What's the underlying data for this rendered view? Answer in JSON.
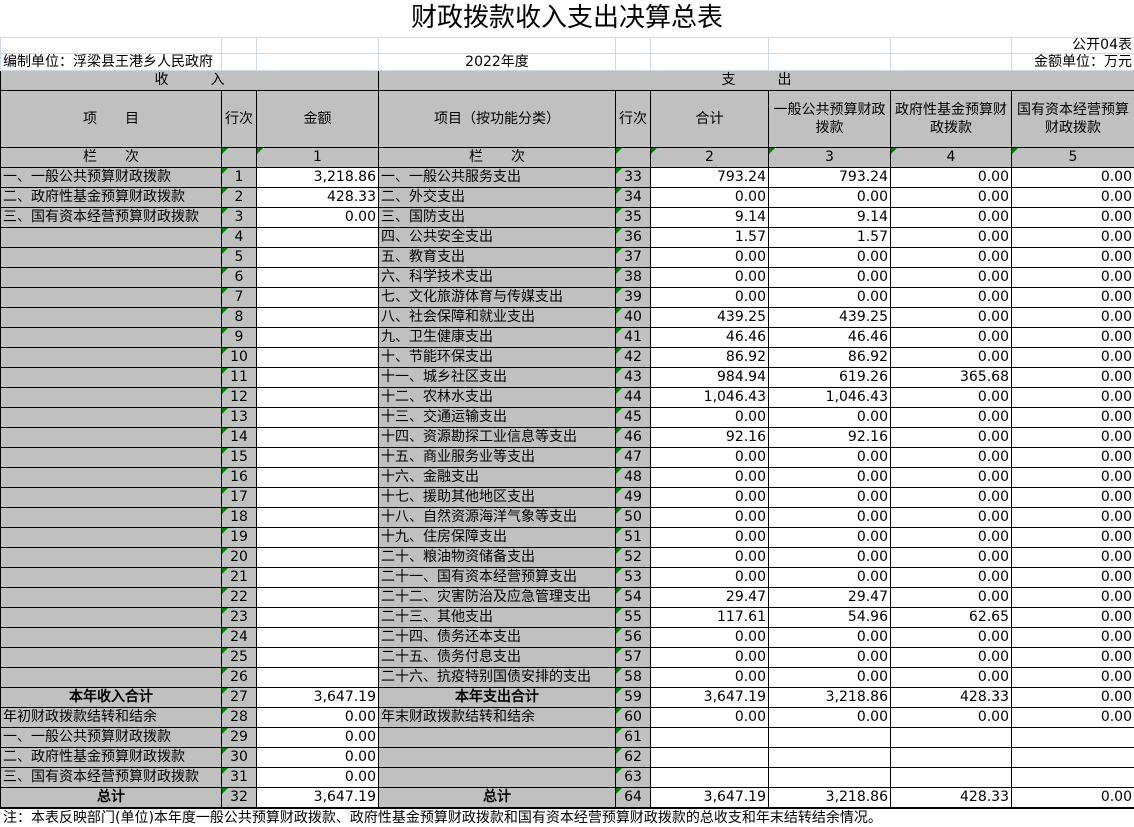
{
  "title": "财政拨款收入支出决算总表",
  "form_code": "公开04表",
  "unit_label": "编制单位：浮梁县王港乡人民政府",
  "year": "2022年度",
  "currency_unit": "金额单位：万元",
  "income_header": "收　　　入",
  "expense_header": "支　　　出",
  "columns": {
    "item": "项　　目",
    "line": "行次",
    "amount": "金额",
    "func_item": "项目（按功能分类）",
    "line2": "行次",
    "total": "合计",
    "general": "一般公共预算财政拨款",
    "fund": "政府性基金预算财政拨款",
    "state": "国有资本经营预算财政拨款"
  },
  "column_index": {
    "label": "栏　　次",
    "amount": "1",
    "label2": "栏　　次",
    "total": "2",
    "general": "3",
    "fund": "4",
    "state": "5"
  },
  "income_rows": [
    {
      "item": "一、一般公共预算财政拨款",
      "line": "1",
      "amount": "3,218.86"
    },
    {
      "item": "二、政府性基金预算财政拨款",
      "line": "2",
      "amount": "428.33"
    },
    {
      "item": "三、国有资本经营预算财政拨款",
      "line": "3",
      "amount": "0.00"
    },
    {
      "item": "",
      "line": "4",
      "amount": ""
    },
    {
      "item": "",
      "line": "5",
      "amount": ""
    },
    {
      "item": "",
      "line": "6",
      "amount": ""
    },
    {
      "item": "",
      "line": "7",
      "amount": ""
    },
    {
      "item": "",
      "line": "8",
      "amount": ""
    },
    {
      "item": "",
      "line": "9",
      "amount": ""
    },
    {
      "item": "",
      "line": "10",
      "amount": ""
    },
    {
      "item": "",
      "line": "11",
      "amount": ""
    },
    {
      "item": "",
      "line": "12",
      "amount": ""
    },
    {
      "item": "",
      "line": "13",
      "amount": ""
    },
    {
      "item": "",
      "line": "14",
      "amount": ""
    },
    {
      "item": "",
      "line": "15",
      "amount": ""
    },
    {
      "item": "",
      "line": "16",
      "amount": ""
    },
    {
      "item": "",
      "line": "17",
      "amount": ""
    },
    {
      "item": "",
      "line": "18",
      "amount": ""
    },
    {
      "item": "",
      "line": "19",
      "amount": ""
    },
    {
      "item": "",
      "line": "20",
      "amount": ""
    },
    {
      "item": "",
      "line": "21",
      "amount": ""
    },
    {
      "item": "",
      "line": "22",
      "amount": ""
    },
    {
      "item": "",
      "line": "23",
      "amount": ""
    },
    {
      "item": "",
      "line": "24",
      "amount": ""
    },
    {
      "item": "",
      "line": "25",
      "amount": ""
    },
    {
      "item": "",
      "line": "26",
      "amount": ""
    },
    {
      "item": "本年收入合计",
      "line": "27",
      "amount": "3,647.19"
    },
    {
      "item": "年初财政拨款结转和结余",
      "line": "28",
      "amount": "0.00"
    },
    {
      "item": "一、一般公共预算财政拨款",
      "line": "29",
      "amount": "0.00"
    },
    {
      "item": "二、政府性基金预算财政拨款",
      "line": "30",
      "amount": "0.00"
    },
    {
      "item": "三、国有资本经营预算财政拨款",
      "line": "31",
      "amount": "0.00"
    },
    {
      "item": "总计",
      "line": "32",
      "amount": "3,647.19"
    }
  ],
  "expense_rows": [
    {
      "item": "一、一般公共服务支出",
      "line": "33",
      "total": "793.24",
      "general": "793.24",
      "fund": "0.00",
      "state": "0.00"
    },
    {
      "item": "二、外交支出",
      "line": "34",
      "total": "0.00",
      "general": "0.00",
      "fund": "0.00",
      "state": "0.00"
    },
    {
      "item": "三、国防支出",
      "line": "35",
      "total": "9.14",
      "general": "9.14",
      "fund": "0.00",
      "state": "0.00"
    },
    {
      "item": "四、公共安全支出",
      "line": "36",
      "total": "1.57",
      "general": "1.57",
      "fund": "0.00",
      "state": "0.00"
    },
    {
      "item": "五、教育支出",
      "line": "37",
      "total": "0.00",
      "general": "0.00",
      "fund": "0.00",
      "state": "0.00"
    },
    {
      "item": "六、科学技术支出",
      "line": "38",
      "total": "0.00",
      "general": "0.00",
      "fund": "0.00",
      "state": "0.00"
    },
    {
      "item": "七、文化旅游体育与传媒支出",
      "line": "39",
      "total": "0.00",
      "general": "0.00",
      "fund": "0.00",
      "state": "0.00"
    },
    {
      "item": "八、社会保障和就业支出",
      "line": "40",
      "total": "439.25",
      "general": "439.25",
      "fund": "0.00",
      "state": "0.00"
    },
    {
      "item": "九、卫生健康支出",
      "line": "41",
      "total": "46.46",
      "general": "46.46",
      "fund": "0.00",
      "state": "0.00"
    },
    {
      "item": "十、节能环保支出",
      "line": "42",
      "total": "86.92",
      "general": "86.92",
      "fund": "0.00",
      "state": "0.00"
    },
    {
      "item": "十一、城乡社区支出",
      "line": "43",
      "total": "984.94",
      "general": "619.26",
      "fund": "365.68",
      "state": "0.00"
    },
    {
      "item": "十二、农林水支出",
      "line": "44",
      "total": "1,046.43",
      "general": "1,046.43",
      "fund": "0.00",
      "state": "0.00"
    },
    {
      "item": "十三、交通运输支出",
      "line": "45",
      "total": "0.00",
      "general": "0.00",
      "fund": "0.00",
      "state": "0.00"
    },
    {
      "item": "十四、资源勘探工业信息等支出",
      "line": "46",
      "total": "92.16",
      "general": "92.16",
      "fund": "0.00",
      "state": "0.00"
    },
    {
      "item": "十五、商业服务业等支出",
      "line": "47",
      "total": "0.00",
      "general": "0.00",
      "fund": "0.00",
      "state": "0.00"
    },
    {
      "item": "十六、金融支出",
      "line": "48",
      "total": "0.00",
      "general": "0.00",
      "fund": "0.00",
      "state": "0.00"
    },
    {
      "item": "十七、援助其他地区支出",
      "line": "49",
      "total": "0.00",
      "general": "0.00",
      "fund": "0.00",
      "state": "0.00"
    },
    {
      "item": "十八、自然资源海洋气象等支出",
      "line": "50",
      "total": "0.00",
      "general": "0.00",
      "fund": "0.00",
      "state": "0.00"
    },
    {
      "item": "十九、住房保障支出",
      "line": "51",
      "total": "0.00",
      "general": "0.00",
      "fund": "0.00",
      "state": "0.00"
    },
    {
      "item": "二十、粮油物资储备支出",
      "line": "52",
      "total": "0.00",
      "general": "0.00",
      "fund": "0.00",
      "state": "0.00"
    },
    {
      "item": "二十一、国有资本经营预算支出",
      "line": "53",
      "total": "0.00",
      "general": "0.00",
      "fund": "0.00",
      "state": "0.00"
    },
    {
      "item": "二十二、灾害防治及应急管理支出",
      "line": "54",
      "total": "29.47",
      "general": "29.47",
      "fund": "0.00",
      "state": "0.00"
    },
    {
      "item": "二十三、其他支出",
      "line": "55",
      "total": "117.61",
      "general": "54.96",
      "fund": "62.65",
      "state": "0.00"
    },
    {
      "item": "二十四、债务还本支出",
      "line": "56",
      "total": "0.00",
      "general": "0.00",
      "fund": "0.00",
      "state": "0.00"
    },
    {
      "item": "二十五、债务付息支出",
      "line": "57",
      "total": "0.00",
      "general": "0.00",
      "fund": "0.00",
      "state": "0.00"
    },
    {
      "item": "二十六、抗疫特别国债安排的支出",
      "line": "58",
      "total": "0.00",
      "general": "0.00",
      "fund": "0.00",
      "state": "0.00"
    },
    {
      "item": "本年支出合计",
      "line": "59",
      "total": "3,647.19",
      "general": "3,218.86",
      "fund": "428.33",
      "state": "0.00"
    },
    {
      "item": "年末财政拨款结转和结余",
      "line": "60",
      "total": "0.00",
      "general": "0.00",
      "fund": "0.00",
      "state": "0.00"
    },
    {
      "item": "",
      "line": "61",
      "total": "",
      "general": "",
      "fund": "",
      "state": ""
    },
    {
      "item": "",
      "line": "62",
      "total": "",
      "general": "",
      "fund": "",
      "state": ""
    },
    {
      "item": "",
      "line": "63",
      "total": "",
      "general": "",
      "fund": "",
      "state": ""
    },
    {
      "item": "总计",
      "line": "64",
      "total": "3,647.19",
      "general": "3,218.86",
      "fund": "428.33",
      "state": "0.00"
    }
  ],
  "note": "注：本表反映部门(单位)本年度一般公共预算财政拨款、政府性基金预算财政拨款和国有资本经营预算财政拨款的总收支和年末结转结余情况。",
  "colors": {
    "header_fill": "#c0c0c0",
    "grid_light": "#d0d7e5",
    "comment_marker": "#008000"
  }
}
